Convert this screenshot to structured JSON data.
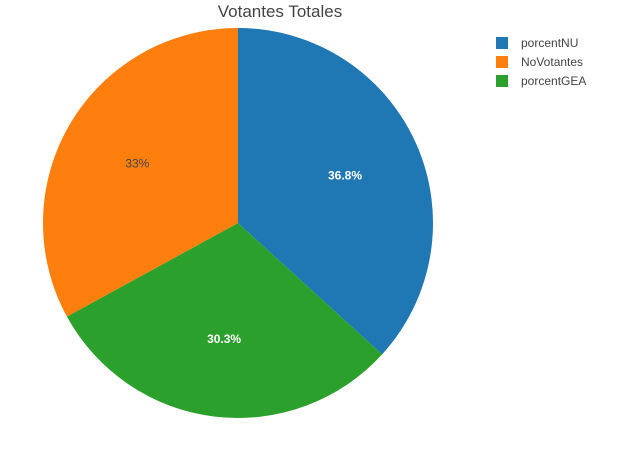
{
  "chart_data": {
    "type": "pie",
    "title": "Votantes Totales",
    "slices": [
      {
        "label": "porcentNU",
        "value": 36.8,
        "display": "36.8%",
        "color": "#1f77b4",
        "text_color": "#ffffff"
      },
      {
        "label": "porcentGEA",
        "value": 30.3,
        "display": "30.3%",
        "color": "#2ca02c",
        "text_color": "#ffffff"
      },
      {
        "label": "NoVotantes",
        "value": 33,
        "display": "33%",
        "color": "#ff7f0e",
        "text_color": "#444444"
      }
    ],
    "legend": {
      "placement": "top-right",
      "entries": [
        "porcentNU",
        "NoVotantes",
        "porcentGEA"
      ]
    },
    "start": "12 o'clock",
    "direction": "clockwise"
  }
}
